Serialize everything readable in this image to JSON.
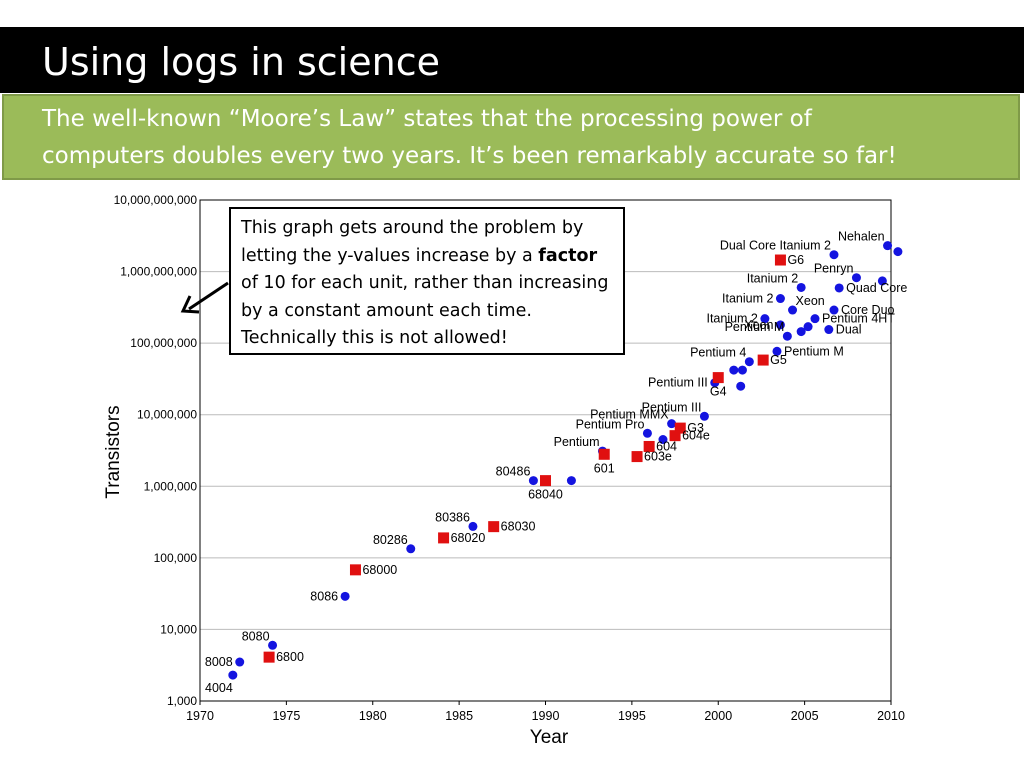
{
  "slide": {
    "title": "Using logs in science",
    "subtitle_line1": "The well-known “Moore’s Law” states that the processing power of",
    "subtitle_line2": "computers doubles every two years. It’s been remarkably accurate so far!"
  },
  "callout": {
    "text_before": "This graph gets around the problem by letting the y-values increase by a ",
    "text_bold": "factor",
    "text_after": " of 10 for each unit, rather than increasing by a constant amount each time. Technically this is not allowed!"
  },
  "colors": {
    "title_bar": "#000000",
    "band": "#9bbb59",
    "intel": "#1414e0",
    "motorola": "#e01010"
  },
  "chart_data": {
    "type": "scatter",
    "xlabel": "Year",
    "ylabel": "Transistors",
    "xlim": [
      1970,
      2010
    ],
    "ylim": [
      1000,
      10000000000
    ],
    "yscale": "log",
    "grid": true,
    "xticks": [
      1970,
      1975,
      1980,
      1985,
      1990,
      1995,
      2000,
      2005,
      2010
    ],
    "yticks": [
      {
        "value": 1000,
        "label": "1,000"
      },
      {
        "value": 10000,
        "label": "10,000"
      },
      {
        "value": 100000,
        "label": "100,000"
      },
      {
        "value": 1000000,
        "label": "1,000,000"
      },
      {
        "value": 10000000,
        "label": "10,000,000"
      },
      {
        "value": 100000000,
        "label": "100,000,000"
      },
      {
        "value": 1000000000,
        "label": "1,000,000,000"
      },
      {
        "value": 10000000000,
        "label": "10,000,000,000"
      }
    ],
    "series": [
      {
        "marker": "circle",
        "points": [
          {
            "x": 1971.9,
            "y": 2300,
            "label": "4004",
            "label_pos": "below-left"
          },
          {
            "x": 1972.3,
            "y": 3500,
            "label": "8008",
            "label_pos": "left"
          },
          {
            "x": 1974.2,
            "y": 6000,
            "label": "8080",
            "label_pos": "above-left"
          },
          {
            "x": 1978.4,
            "y": 29000,
            "label": "8086",
            "label_pos": "left"
          },
          {
            "x": 1982.2,
            "y": 134000,
            "label": "80286",
            "label_pos": "above-left"
          },
          {
            "x": 1985.8,
            "y": 275000,
            "label": "80386",
            "label_pos": "above-left"
          },
          {
            "x": 1989.3,
            "y": 1200000,
            "label": "80486",
            "label_pos": "above-left"
          },
          {
            "x": 1991.5,
            "y": 1200000,
            "label": "",
            "label_pos": "none"
          },
          {
            "x": 1993.3,
            "y": 3100000,
            "label": "Pentium",
            "label_pos": "above-left"
          },
          {
            "x": 1995.9,
            "y": 5500000,
            "label": "Pentium Pro",
            "label_pos": "above-left"
          },
          {
            "x": 1996.8,
            "y": 4500000,
            "label": "",
            "label_pos": "none"
          },
          {
            "x": 1997.3,
            "y": 7500000,
            "label": "Pentium MMX",
            "label_pos": "above-left"
          },
          {
            "x": 1999.2,
            "y": 9500000,
            "label": "Pentium III",
            "label_pos": "above-left"
          },
          {
            "x": 1999.8,
            "y": 28000000,
            "label": "Pentium III",
            "label_pos": "left"
          },
          {
            "x": 2000.9,
            "y": 42000000,
            "label": "",
            "label_pos": "none"
          },
          {
            "x": 2001.3,
            "y": 25000000,
            "label": "",
            "label_pos": "none"
          },
          {
            "x": 2001.4,
            "y": 42000000,
            "label": "",
            "label_pos": "none"
          },
          {
            "x": 2001.8,
            "y": 55000000,
            "label": "Pentium 4",
            "label_pos": "above-left"
          },
          {
            "x": 2003.4,
            "y": 77000000,
            "label": "Pentium M",
            "label_pos": "right"
          },
          {
            "x": 2002.7,
            "y": 220000000,
            "label": "Itanium 2",
            "label_pos": "left"
          },
          {
            "x": 2004.0,
            "y": 125000000,
            "label": "Pentium M",
            "label_pos": "above-left"
          },
          {
            "x": 2003.6,
            "y": 180000000,
            "label": "Xeon",
            "label_pos": "left"
          },
          {
            "x": 2004.3,
            "y": 290000000,
            "label": "Xeon",
            "label_pos": "above-right"
          },
          {
            "x": 2003.6,
            "y": 420000000,
            "label": "Itanium 2",
            "label_pos": "left"
          },
          {
            "x": 2004.8,
            "y": 600000000,
            "label": "Itanium 2",
            "label_pos": "above-left"
          },
          {
            "x": 2004.8,
            "y": 145000000,
            "label": "",
            "label_pos": "none"
          },
          {
            "x": 2005.2,
            "y": 170000000,
            "label": "",
            "label_pos": "none"
          },
          {
            "x": 2005.6,
            "y": 220000000,
            "label": "Pentium 4HT",
            "label_pos": "right"
          },
          {
            "x": 2006.4,
            "y": 155000000,
            "label": "Dual",
            "label_pos": "right"
          },
          {
            "x": 2006.7,
            "y": 290000000,
            "label": "Core Duo",
            "label_pos": "right"
          },
          {
            "x": 2007.0,
            "y": 590000000,
            "label": "Quad Core",
            "label_pos": "right"
          },
          {
            "x": 2008.0,
            "y": 820000000,
            "label": "Penryn",
            "label_pos": "above-left"
          },
          {
            "x": 2009.5,
            "y": 740000000,
            "label": "",
            "label_pos": "none"
          },
          {
            "x": 2006.7,
            "y": 1720000000,
            "label": "Dual Core Itanium 2",
            "label_pos": "above-left"
          },
          {
            "x": 2009.8,
            "y": 2300000000,
            "label": "Nehalen",
            "label_pos": "above-left"
          },
          {
            "x": 2010.4,
            "y": 1900000000,
            "label": "",
            "label_pos": "none"
          }
        ]
      },
      {
        "marker": "square",
        "points": [
          {
            "x": 1974.0,
            "y": 4100,
            "label": "6800",
            "label_pos": "right"
          },
          {
            "x": 1979.0,
            "y": 68000,
            "label": "68000",
            "label_pos": "right"
          },
          {
            "x": 1984.1,
            "y": 190000,
            "label": "68020",
            "label_pos": "right"
          },
          {
            "x": 1987.0,
            "y": 273000,
            "label": "68030",
            "label_pos": "right"
          },
          {
            "x": 1990.0,
            "y": 1200000,
            "label": "68040",
            "label_pos": "below"
          },
          {
            "x": 1993.4,
            "y": 2800000,
            "label": "601",
            "label_pos": "below"
          },
          {
            "x": 1995.3,
            "y": 2600000,
            "label": "603e",
            "label_pos": "right"
          },
          {
            "x": 1996.0,
            "y": 3600000,
            "label": "604",
            "label_pos": "right"
          },
          {
            "x": 1997.5,
            "y": 5100000,
            "label": "604e",
            "label_pos": "right"
          },
          {
            "x": 1997.8,
            "y": 6500000,
            "label": "G3",
            "label_pos": "right"
          },
          {
            "x": 2000.0,
            "y": 33000000,
            "label": "G4",
            "label_pos": "below"
          },
          {
            "x": 2002.6,
            "y": 58000000,
            "label": "G5",
            "label_pos": "right"
          },
          {
            "x": 2003.6,
            "y": 1450000000,
            "label": "G6",
            "label_pos": "right"
          }
        ]
      }
    ]
  }
}
